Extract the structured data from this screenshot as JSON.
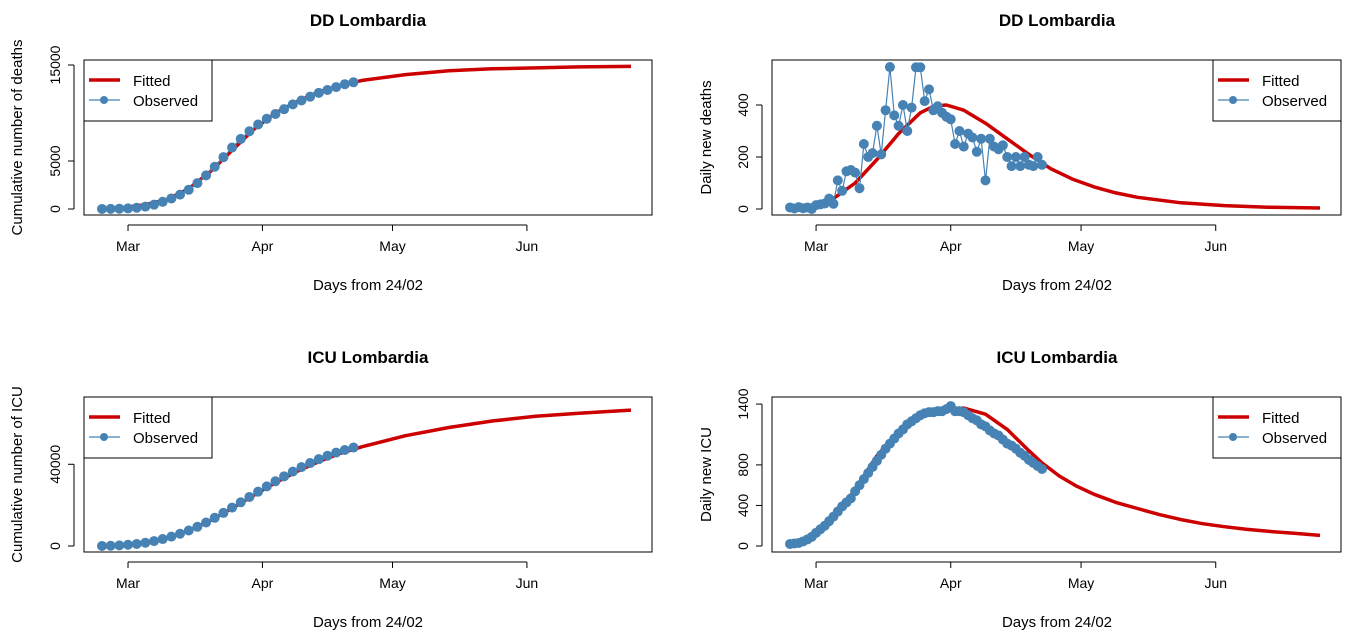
{
  "colors": {
    "fitted": "#cc0000",
    "observed": "#4682b4"
  },
  "chart_data": [
    {
      "type": "line",
      "title": "DD Lombardia",
      "xlabel": "Days from 24/02",
      "ylabel": "Cumulative number of deaths",
      "xlim": [
        0,
        122
      ],
      "ylim": [
        0,
        15000
      ],
      "yticks": [
        0,
        5000,
        15000
      ],
      "xticks": [
        {
          "x": 6,
          "label": "Mar"
        },
        {
          "x": 37,
          "label": "Apr"
        },
        {
          "x": 67,
          "label": "May"
        },
        {
          "x": 98,
          "label": "Jun"
        }
      ],
      "legend": {
        "position": "top-left",
        "entries": [
          "Fitted",
          "Observed"
        ]
      },
      "series": [
        {
          "name": "Fitted",
          "x": [
            0,
            5,
            10,
            15,
            20,
            25,
            30,
            35,
            40,
            45,
            50,
            55,
            60,
            70,
            80,
            90,
            100,
            110,
            122
          ],
          "y": [
            0,
            150,
            450,
            1000,
            2100,
            3900,
            6100,
            8300,
            10000,
            11200,
            12200,
            12900,
            13400,
            14000,
            14400,
            14600,
            14700,
            14800,
            14850
          ]
        },
        {
          "name": "Observed",
          "x": [
            0,
            2,
            4,
            6,
            8,
            10,
            12,
            14,
            16,
            18,
            20,
            22,
            24,
            26,
            28,
            30,
            32,
            34,
            36,
            38,
            40,
            42,
            44,
            46,
            48,
            50,
            52,
            54,
            56,
            58
          ],
          "y": [
            6,
            12,
            30,
            60,
            130,
            250,
            450,
            750,
            1100,
            1500,
            2000,
            2700,
            3500,
            4400,
            5400,
            6400,
            7300,
            8100,
            8800,
            9400,
            9900,
            10400,
            10900,
            11300,
            11700,
            12100,
            12400,
            12700,
            13000,
            13200
          ]
        }
      ]
    },
    {
      "type": "line",
      "title": "DD Lombardia",
      "xlabel": "Days from 24/02",
      "ylabel": "Daily new deaths",
      "xlim": [
        0,
        122
      ],
      "ylim": [
        0,
        550
      ],
      "yticks": [
        0,
        200,
        400
      ],
      "xticks": [
        {
          "x": 6,
          "label": "Mar"
        },
        {
          "x": 37,
          "label": "Apr"
        },
        {
          "x": 67,
          "label": "May"
        },
        {
          "x": 98,
          "label": "Jun"
        }
      ],
      "legend": {
        "position": "top-right",
        "entries": [
          "Fitted",
          "Observed"
        ]
      },
      "series": [
        {
          "name": "Fitted",
          "x": [
            0,
            5,
            10,
            15,
            20,
            25,
            30,
            33,
            36,
            40,
            45,
            50,
            55,
            60,
            65,
            70,
            75,
            80,
            90,
            100,
            110,
            122
          ],
          "y": [
            5,
            15,
            40,
            100,
            190,
            290,
            370,
            395,
            400,
            380,
            330,
            270,
            210,
            155,
            115,
            85,
            62,
            45,
            24,
            13,
            7,
            4
          ]
        },
        {
          "name": "Observed",
          "x": [
            0,
            1,
            2,
            3,
            4,
            5,
            6,
            7,
            8,
            9,
            10,
            11,
            12,
            13,
            14,
            15,
            16,
            17,
            18,
            19,
            20,
            21,
            22,
            23,
            24,
            25,
            26,
            27,
            28,
            29,
            30,
            31,
            32,
            33,
            34,
            35,
            36,
            37,
            38,
            39,
            40,
            41,
            42,
            43,
            44,
            45,
            46,
            47,
            48,
            49,
            50,
            51,
            52,
            53,
            54,
            55,
            56,
            57,
            58
          ],
          "y": [
            6,
            2,
            7,
            3,
            6,
            0,
            15,
            18,
            21,
            40,
            20,
            110,
            70,
            145,
            150,
            140,
            80,
            250,
            200,
            215,
            320,
            210,
            380,
            546,
            360,
            320,
            400,
            300,
            390,
            545,
            545,
            415,
            460,
            380,
            395,
            370,
            355,
            345,
            250,
            300,
            240,
            290,
            275,
            220,
            270,
            110,
            270,
            240,
            230,
            245,
            200,
            165,
            200,
            165,
            200,
            170,
            165,
            200,
            170
          ]
        }
      ]
    },
    {
      "type": "line",
      "title": "ICU Lombardia",
      "xlabel": "Days from 24/02",
      "ylabel": "Cumulative number of ICU",
      "xlim": [
        0,
        122
      ],
      "ylim": [
        0,
        70000
      ],
      "yticks": [
        0,
        40000
      ],
      "xticks": [
        {
          "x": 6,
          "label": "Mar"
        },
        {
          "x": 37,
          "label": "Apr"
        },
        {
          "x": 67,
          "label": "May"
        },
        {
          "x": 98,
          "label": "Jun"
        }
      ],
      "legend": {
        "position": "top-left",
        "entries": [
          "Fitted",
          "Observed"
        ]
      },
      "series": [
        {
          "name": "Fitted",
          "x": [
            0,
            5,
            10,
            15,
            20,
            25,
            30,
            35,
            40,
            45,
            50,
            55,
            60,
            70,
            80,
            90,
            100,
            110,
            122
          ],
          "y": [
            0,
            300,
            1500,
            3800,
            7500,
            12500,
            18500,
            24800,
            31000,
            36500,
            41300,
            45400,
            48600,
            54000,
            58000,
            61200,
            63500,
            65000,
            66500
          ]
        },
        {
          "name": "Observed",
          "x": [
            0,
            2,
            4,
            6,
            8,
            10,
            12,
            14,
            16,
            18,
            20,
            22,
            24,
            26,
            28,
            30,
            32,
            34,
            36,
            38,
            40,
            42,
            44,
            46,
            48,
            50,
            52,
            54,
            56,
            58
          ],
          "y": [
            30,
            120,
            300,
            600,
            1000,
            1600,
            2400,
            3400,
            4600,
            6000,
            7600,
            9400,
            11500,
            13800,
            16200,
            18800,
            21400,
            24000,
            26600,
            29200,
            31700,
            34100,
            36400,
            38600,
            40600,
            42500,
            44200,
            45700,
            47000,
            48200
          ]
        }
      ]
    },
    {
      "type": "line",
      "title": "ICU Lombardia",
      "xlabel": "Days from 24/02",
      "ylabel": "Daily new ICU",
      "xlim": [
        0,
        122
      ],
      "ylim": [
        0,
        1450
      ],
      "yticks": [
        0,
        400,
        800,
        1400
      ],
      "xticks": [
        {
          "x": 6,
          "label": "Mar"
        },
        {
          "x": 37,
          "label": "Apr"
        },
        {
          "x": 67,
          "label": "May"
        },
        {
          "x": 98,
          "label": "Jun"
        }
      ],
      "legend": {
        "position": "top-right",
        "entries": [
          "Fitted",
          "Observed"
        ]
      },
      "series": [
        {
          "name": "Fitted",
          "x": [
            0,
            5,
            10,
            15,
            20,
            25,
            30,
            35,
            40,
            45,
            50,
            55,
            58,
            62,
            66,
            70,
            75,
            80,
            85,
            90,
            95,
            100,
            105,
            110,
            116,
            122
          ],
          "y": [
            20,
            80,
            260,
            560,
            890,
            1120,
            1280,
            1350,
            1360,
            1300,
            1150,
            940,
            820,
            690,
            590,
            510,
            430,
            370,
            310,
            260,
            220,
            190,
            165,
            145,
            125,
            105
          ]
        },
        {
          "name": "Observed",
          "x": [
            0,
            1,
            2,
            3,
            4,
            5,
            6,
            7,
            8,
            9,
            10,
            11,
            12,
            13,
            14,
            15,
            16,
            17,
            18,
            19,
            20,
            21,
            22,
            23,
            24,
            25,
            26,
            27,
            28,
            29,
            30,
            31,
            32,
            33,
            34,
            35,
            36,
            37,
            38,
            39,
            40,
            41,
            42,
            43,
            44,
            45,
            46,
            47,
            48,
            49,
            50,
            51,
            52,
            53,
            54,
            55,
            56,
            57,
            58
          ],
          "y": [
            20,
            25,
            30,
            45,
            65,
            90,
            130,
            165,
            200,
            245,
            290,
            340,
            390,
            430,
            470,
            540,
            600,
            660,
            720,
            780,
            840,
            900,
            960,
            1010,
            1060,
            1110,
            1150,
            1200,
            1230,
            1260,
            1290,
            1310,
            1320,
            1320,
            1330,
            1330,
            1350,
            1380,
            1330,
            1330,
            1320,
            1290,
            1260,
            1240,
            1200,
            1180,
            1140,
            1110,
            1090,
            1050,
            1010,
            990,
            960,
            920,
            890,
            850,
            820,
            790,
            760
          ]
        }
      ]
    }
  ]
}
